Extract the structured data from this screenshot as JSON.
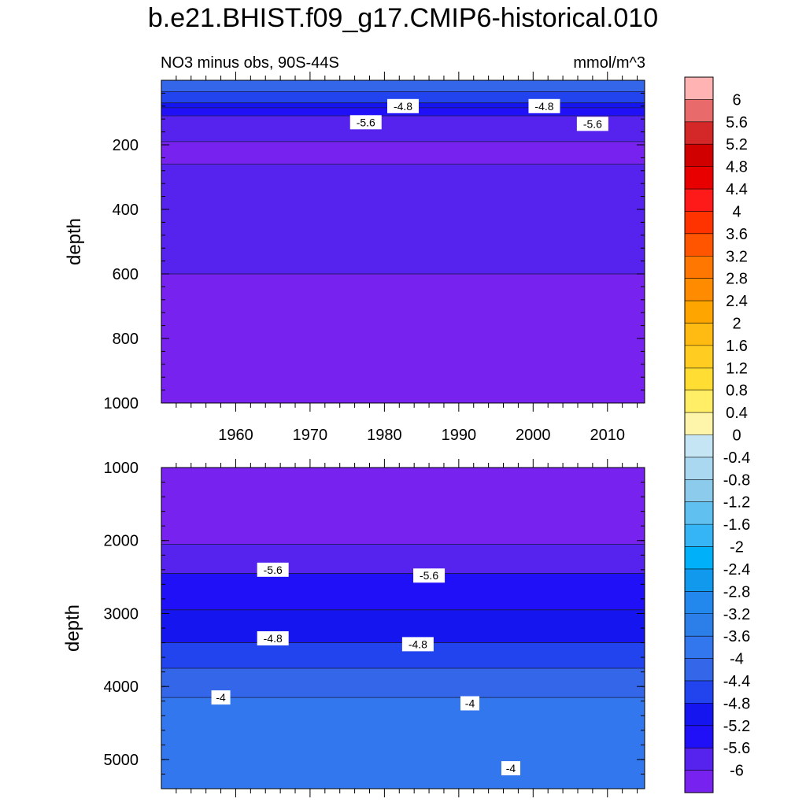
{
  "figure_title": "b.e21.BHIST.f09_g17.CMIP6-historical.010",
  "chart_data": [
    {
      "type": "heatmap",
      "subtitle": "NO3 minus obs, 90S-44S",
      "units": "mmol/m^3",
      "ylabel": "depth",
      "ylim": [
        1000,
        0
      ],
      "yticks": [
        200,
        400,
        600,
        800,
        1000
      ],
      "xlim": [
        1950,
        2015
      ],
      "xticks": [
        1960,
        1970,
        1980,
        1990,
        2000,
        2010
      ],
      "bands": [
        {
          "depth_from": 0,
          "depth_to": 35,
          "value": -4.2
        },
        {
          "depth_from": 35,
          "depth_to": 70,
          "value": -4.6
        },
        {
          "depth_from": 70,
          "depth_to": 85,
          "value": -5.0
        },
        {
          "depth_from": 85,
          "depth_to": 110,
          "value": -5.4
        },
        {
          "depth_from": 110,
          "depth_to": 190,
          "value": -5.8
        },
        {
          "depth_from": 190,
          "depth_to": 260,
          "value": -6.2
        },
        {
          "depth_from": 260,
          "depth_to": 600,
          "value": -5.8
        },
        {
          "depth_from": 600,
          "depth_to": 1000,
          "value": -6.2
        }
      ],
      "contour_labels": [
        {
          "text": "-4.8",
          "x": 1982.5,
          "depth": 80
        },
        {
          "text": "-4.8",
          "x": 2001.5,
          "depth": 80
        },
        {
          "text": "-5.6",
          "x": 1977.5,
          "depth": 130
        },
        {
          "text": "-5.6",
          "x": 2008,
          "depth": 135
        }
      ]
    },
    {
      "type": "heatmap",
      "ylabel": "depth",
      "ylim": [
        5400,
        1000
      ],
      "yticks": [
        1000,
        2000,
        3000,
        4000,
        5000
      ],
      "xlim": [
        1950,
        2015
      ],
      "bands": [
        {
          "depth_from": 1000,
          "depth_to": 2050,
          "value": -6.2
        },
        {
          "depth_from": 2050,
          "depth_to": 2450,
          "value": -5.8
        },
        {
          "depth_from": 2450,
          "depth_to": 2950,
          "value": -5.4
        },
        {
          "depth_from": 2950,
          "depth_to": 3400,
          "value": -5.0
        },
        {
          "depth_from": 3400,
          "depth_to": 3750,
          "value": -4.6
        },
        {
          "depth_from": 3750,
          "depth_to": 4150,
          "value": -4.2
        },
        {
          "depth_from": 4150,
          "depth_to": 5400,
          "value": -3.8
        }
      ],
      "contour_labels": [
        {
          "text": "-5.6",
          "x": 1965,
          "depth": 2400
        },
        {
          "text": "-5.6",
          "x": 1986,
          "depth": 2480
        },
        {
          "text": "-4.8",
          "x": 1965,
          "depth": 3340
        },
        {
          "text": "-4.8",
          "x": 1984.5,
          "depth": 3420
        },
        {
          "text": "-4",
          "x": 1958,
          "depth": 4150
        },
        {
          "text": "-4",
          "x": 1991.5,
          "depth": 4230
        },
        {
          "text": "-4",
          "x": 1997,
          "depth": 5120
        }
      ]
    }
  ],
  "colorbar": {
    "labels": [
      "6",
      "5.6",
      "5.2",
      "4.8",
      "4.4",
      "4",
      "3.6",
      "3.2",
      "2.8",
      "2.4",
      "2",
      "1.6",
      "1.2",
      "0.8",
      "0.4",
      "0",
      "-0.4",
      "-0.8",
      "-1.2",
      "-1.6",
      "-2",
      "-2.4",
      "-2.8",
      "-3.2",
      "-3.6",
      "-4",
      "-4.4",
      "-4.8",
      "-5.2",
      "-5.6",
      "-6"
    ],
    "colors": [
      "#FFB3B3",
      "#E86A6A",
      "#D42828",
      "#D00000",
      "#E80000",
      "#FF1A1A",
      "#FF3300",
      "#FF5500",
      "#FF7700",
      "#FF8C00",
      "#FFA500",
      "#FFBB11",
      "#FFCC22",
      "#FFDD33",
      "#FFEE66",
      "#FFF5AA",
      "#C5E5F5",
      "#AAD8F0",
      "#8CCBEC",
      "#60C0F0",
      "#35B5F5",
      "#00B0F8",
      "#1199EE",
      "#2288EE",
      "#2C7FE8",
      "#3377EE",
      "#3366E8",
      "#2244EE",
      "#1515F0",
      "#2010F8",
      "#5522EE",
      "#7722EE"
    ]
  }
}
